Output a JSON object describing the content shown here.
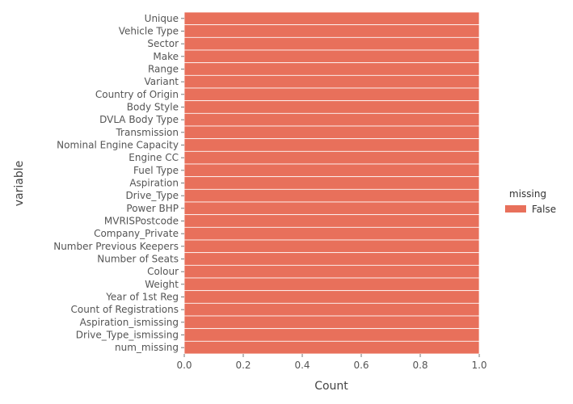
{
  "chart_data": {
    "type": "bar",
    "orientation": "horizontal",
    "stacked": true,
    "categories": [
      "Unique",
      "Vehicle Type",
      "Sector",
      "Make",
      "Range",
      "Variant",
      "Country of Origin",
      "Body Style",
      "DVLA Body Type",
      "Transmission",
      "Nominal Engine Capacity",
      "Engine CC",
      "Fuel Type",
      "Aspiration",
      "Drive_Type",
      "Power BHP",
      "MVRISPostcode",
      "Company_Private",
      "Number Previous Keepers",
      "Number of Seats",
      "Colour",
      "Weight",
      "Year of 1st Reg",
      "Count of Registrations",
      "Aspiration_ismissing",
      "Drive_Type_ismissing",
      "num_missing"
    ],
    "series": [
      {
        "name": "False",
        "color": "#e8705b",
        "values": [
          1,
          1,
          1,
          1,
          1,
          1,
          1,
          1,
          1,
          1,
          1,
          1,
          1,
          1,
          1,
          1,
          1,
          1,
          1,
          1,
          1,
          1,
          1,
          1,
          1,
          1,
          1
        ]
      }
    ],
    "xlabel": "Count",
    "ylabel": "variable",
    "xlim": [
      0,
      1
    ],
    "xticks": [
      "0.0",
      "0.2",
      "0.4",
      "0.6",
      "0.8",
      "1.0"
    ],
    "grid": false,
    "legend": {
      "title": "missing",
      "placement": "right"
    }
  }
}
